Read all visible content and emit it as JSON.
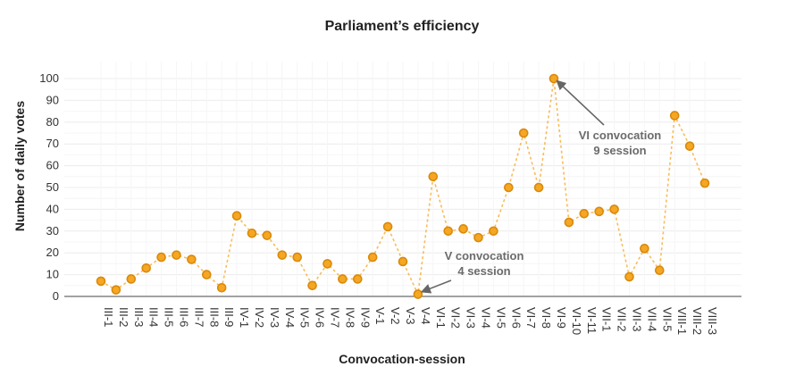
{
  "chart_data": {
    "type": "line",
    "title": "Parliament’s efficiency",
    "xlabel": "Convocation-session",
    "ylabel": "Number of daily votes",
    "ylim": [
      0,
      100
    ],
    "yticks": [
      0,
      10,
      20,
      30,
      40,
      50,
      60,
      70,
      80,
      90,
      100
    ],
    "grid": true,
    "categories": [
      "III-1",
      "III-2",
      "III-3",
      "III-4",
      "III-5",
      "III-6",
      "III-7",
      "III-8",
      "III-9",
      "IV-1",
      "IV-2",
      "IV-3",
      "IV-4",
      "IV-5",
      "IV-6",
      "IV-7",
      "IV-8",
      "IV-9",
      "V-1",
      "V-2",
      "V-3",
      "V-4",
      "VI-1",
      "VI-2",
      "VI-3",
      "VI-4",
      "VI-5",
      "VI-6",
      "VI-7",
      "VI-8",
      "VI-9",
      "VI-10",
      "VI-11",
      "VII-1",
      "VII-2",
      "VII-3",
      "VII-4",
      "VII-5",
      "VIII-1",
      "VIII-2",
      "VIII-3"
    ],
    "series": [
      {
        "values": [
          7,
          3,
          8,
          13,
          18,
          19,
          17,
          10,
          4,
          37,
          29,
          28,
          19,
          18,
          5,
          15,
          8,
          8,
          18,
          32,
          16,
          1,
          55,
          30,
          31,
          27,
          30,
          50,
          75,
          50,
          100,
          34,
          38,
          39,
          40,
          9,
          22,
          12,
          83,
          69,
          52
        ],
        "color": "#f5a623"
      }
    ],
    "annotations": [
      {
        "lines": [
          "V convocation",
          "4 session"
        ],
        "category": "V-4",
        "value": 1
      },
      {
        "lines": [
          "VI convocation",
          "9 session"
        ],
        "category": "VI-9",
        "value": 100
      }
    ]
  }
}
